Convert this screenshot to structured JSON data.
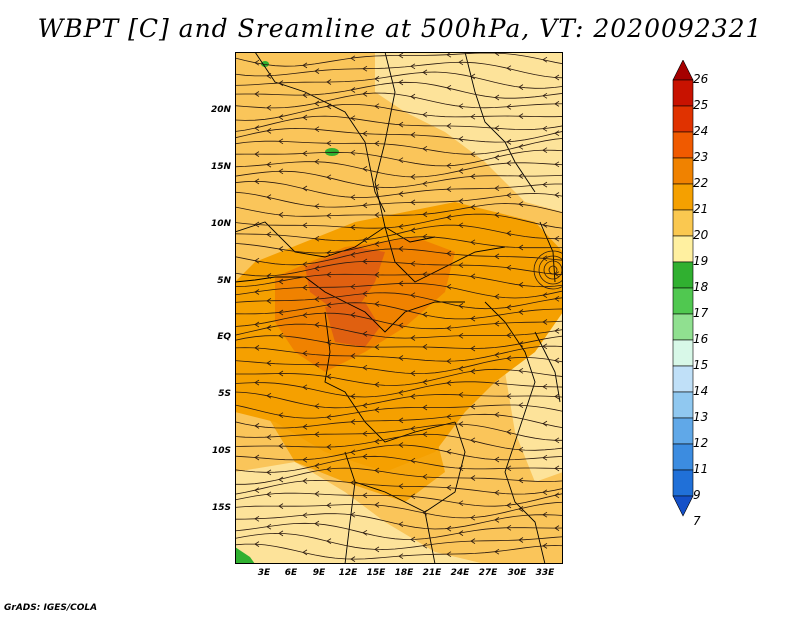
{
  "title": "WBPT [C] and Sreamline at 500hPa, VT: 2020092321",
  "credit": "GrADS: IGES/COLA",
  "lat_labels": [
    "20N",
    "15N",
    "10N",
    "5N",
    "EQ",
    "5S",
    "10S",
    "15S"
  ],
  "lat_values": [
    20,
    15,
    10,
    5,
    0,
    -5,
    -10,
    -15
  ],
  "lon_labels": [
    "3E",
    "6E",
    "9E",
    "12E",
    "15E",
    "18E",
    "21E",
    "24E",
    "27E",
    "30E",
    "33E"
  ],
  "lon_values": [
    3,
    6,
    9,
    12,
    15,
    18,
    21,
    24,
    27,
    30,
    33
  ],
  "colorbar": {
    "labels": [
      "26",
      "25",
      "24",
      "23",
      "22",
      "21",
      "20",
      "19",
      "18",
      "17",
      "16",
      "15",
      "14",
      "13",
      "12",
      "11",
      "9",
      "7"
    ],
    "colors": [
      "#a50000",
      "#c81200",
      "#e03200",
      "#f05a00",
      "#f08200",
      "#f5a000",
      "#fac850",
      "#fff0a0",
      "#30b030",
      "#50c850",
      "#90e090",
      "#d8f8e8",
      "#c0e0f8",
      "#90c8f0",
      "#60a8e8",
      "#3c8ce0",
      "#2070d8",
      "#1450c8"
    ]
  },
  "colors": {
    "land_base": "#fac55a",
    "warm": "#f5a000",
    "hot": "#f08200",
    "hotter": "#e06010",
    "cool_green": "#30b030",
    "streamline": "#2b1a10",
    "border": "#000000"
  }
}
